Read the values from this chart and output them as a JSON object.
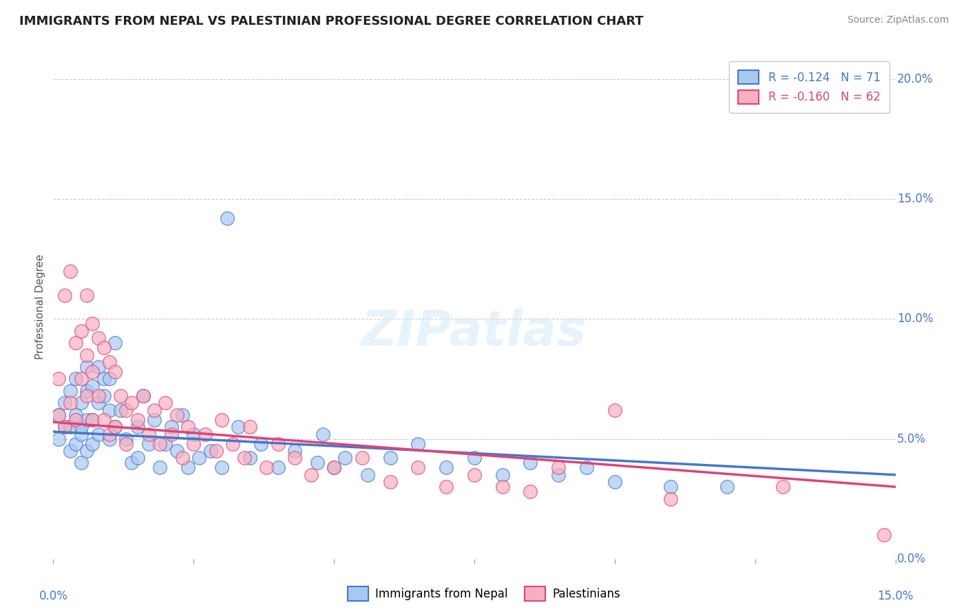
{
  "title": "IMMIGRANTS FROM NEPAL VS PALESTINIAN PROFESSIONAL DEGREE CORRELATION CHART",
  "source": "Source: ZipAtlas.com",
  "ylabel": "Professional Degree",
  "legend_nepal": "R = -0.124   N = 71",
  "legend_pal": "R = -0.160   N = 62",
  "legend_label_nepal": "Immigrants from Nepal",
  "legend_label_pal": "Palestinians",
  "nepal_color": "#a8c8f0",
  "pal_color": "#f8b0c0",
  "nepal_line_color": "#4477cc",
  "pal_line_color": "#dd4477",
  "background_color": "#ffffff",
  "xlim": [
    0.0,
    0.15
  ],
  "ylim": [
    0.0,
    0.21
  ],
  "right_ytick_vals": [
    0.0,
    0.05,
    0.1,
    0.15,
    0.2
  ],
  "right_ytick_labels": [
    "0.0%",
    "5.0%",
    "10.0%",
    "15.0%",
    "20.0%"
  ],
  "nepal_scatter_x": [
    0.001,
    0.001,
    0.002,
    0.002,
    0.003,
    0.003,
    0.003,
    0.004,
    0.004,
    0.004,
    0.005,
    0.005,
    0.005,
    0.005,
    0.006,
    0.006,
    0.006,
    0.006,
    0.007,
    0.007,
    0.007,
    0.008,
    0.008,
    0.008,
    0.009,
    0.009,
    0.01,
    0.01,
    0.01,
    0.011,
    0.011,
    0.012,
    0.013,
    0.014,
    0.015,
    0.015,
    0.016,
    0.017,
    0.018,
    0.019,
    0.02,
    0.021,
    0.022,
    0.023,
    0.024,
    0.025,
    0.026,
    0.028,
    0.03,
    0.031,
    0.033,
    0.035,
    0.037,
    0.04,
    0.043,
    0.047,
    0.048,
    0.05,
    0.052,
    0.056,
    0.06,
    0.065,
    0.07,
    0.075,
    0.08,
    0.085,
    0.09,
    0.095,
    0.1,
    0.11,
    0.12
  ],
  "nepal_scatter_y": [
    0.05,
    0.06,
    0.055,
    0.065,
    0.045,
    0.055,
    0.07,
    0.048,
    0.06,
    0.075,
    0.052,
    0.065,
    0.04,
    0.055,
    0.08,
    0.058,
    0.07,
    0.045,
    0.072,
    0.058,
    0.048,
    0.065,
    0.08,
    0.052,
    0.068,
    0.075,
    0.062,
    0.05,
    0.075,
    0.055,
    0.09,
    0.062,
    0.05,
    0.04,
    0.055,
    0.042,
    0.068,
    0.048,
    0.058,
    0.038,
    0.048,
    0.055,
    0.045,
    0.06,
    0.038,
    0.052,
    0.042,
    0.045,
    0.038,
    0.142,
    0.055,
    0.042,
    0.048,
    0.038,
    0.045,
    0.04,
    0.052,
    0.038,
    0.042,
    0.035,
    0.042,
    0.048,
    0.038,
    0.042,
    0.035,
    0.04,
    0.035,
    0.038,
    0.032,
    0.03,
    0.03
  ],
  "pal_scatter_x": [
    0.001,
    0.001,
    0.002,
    0.002,
    0.003,
    0.003,
    0.004,
    0.004,
    0.005,
    0.005,
    0.006,
    0.006,
    0.006,
    0.007,
    0.007,
    0.007,
    0.008,
    0.008,
    0.009,
    0.009,
    0.01,
    0.01,
    0.011,
    0.011,
    0.012,
    0.013,
    0.013,
    0.014,
    0.015,
    0.016,
    0.017,
    0.018,
    0.019,
    0.02,
    0.021,
    0.022,
    0.023,
    0.024,
    0.025,
    0.027,
    0.029,
    0.03,
    0.032,
    0.034,
    0.035,
    0.038,
    0.04,
    0.043,
    0.046,
    0.05,
    0.055,
    0.06,
    0.065,
    0.07,
    0.075,
    0.08,
    0.085,
    0.09,
    0.1,
    0.11,
    0.13,
    0.148
  ],
  "pal_scatter_y": [
    0.06,
    0.075,
    0.055,
    0.11,
    0.065,
    0.12,
    0.058,
    0.09,
    0.075,
    0.095,
    0.068,
    0.085,
    0.11,
    0.098,
    0.078,
    0.058,
    0.092,
    0.068,
    0.088,
    0.058,
    0.082,
    0.052,
    0.078,
    0.055,
    0.068,
    0.062,
    0.048,
    0.065,
    0.058,
    0.068,
    0.052,
    0.062,
    0.048,
    0.065,
    0.052,
    0.06,
    0.042,
    0.055,
    0.048,
    0.052,
    0.045,
    0.058,
    0.048,
    0.042,
    0.055,
    0.038,
    0.048,
    0.042,
    0.035,
    0.038,
    0.042,
    0.032,
    0.038,
    0.03,
    0.035,
    0.03,
    0.028,
    0.038,
    0.062,
    0.025,
    0.03,
    0.01
  ],
  "nepal_trend": [
    0.053,
    0.035
  ],
  "pal_trend": [
    0.057,
    0.03
  ]
}
